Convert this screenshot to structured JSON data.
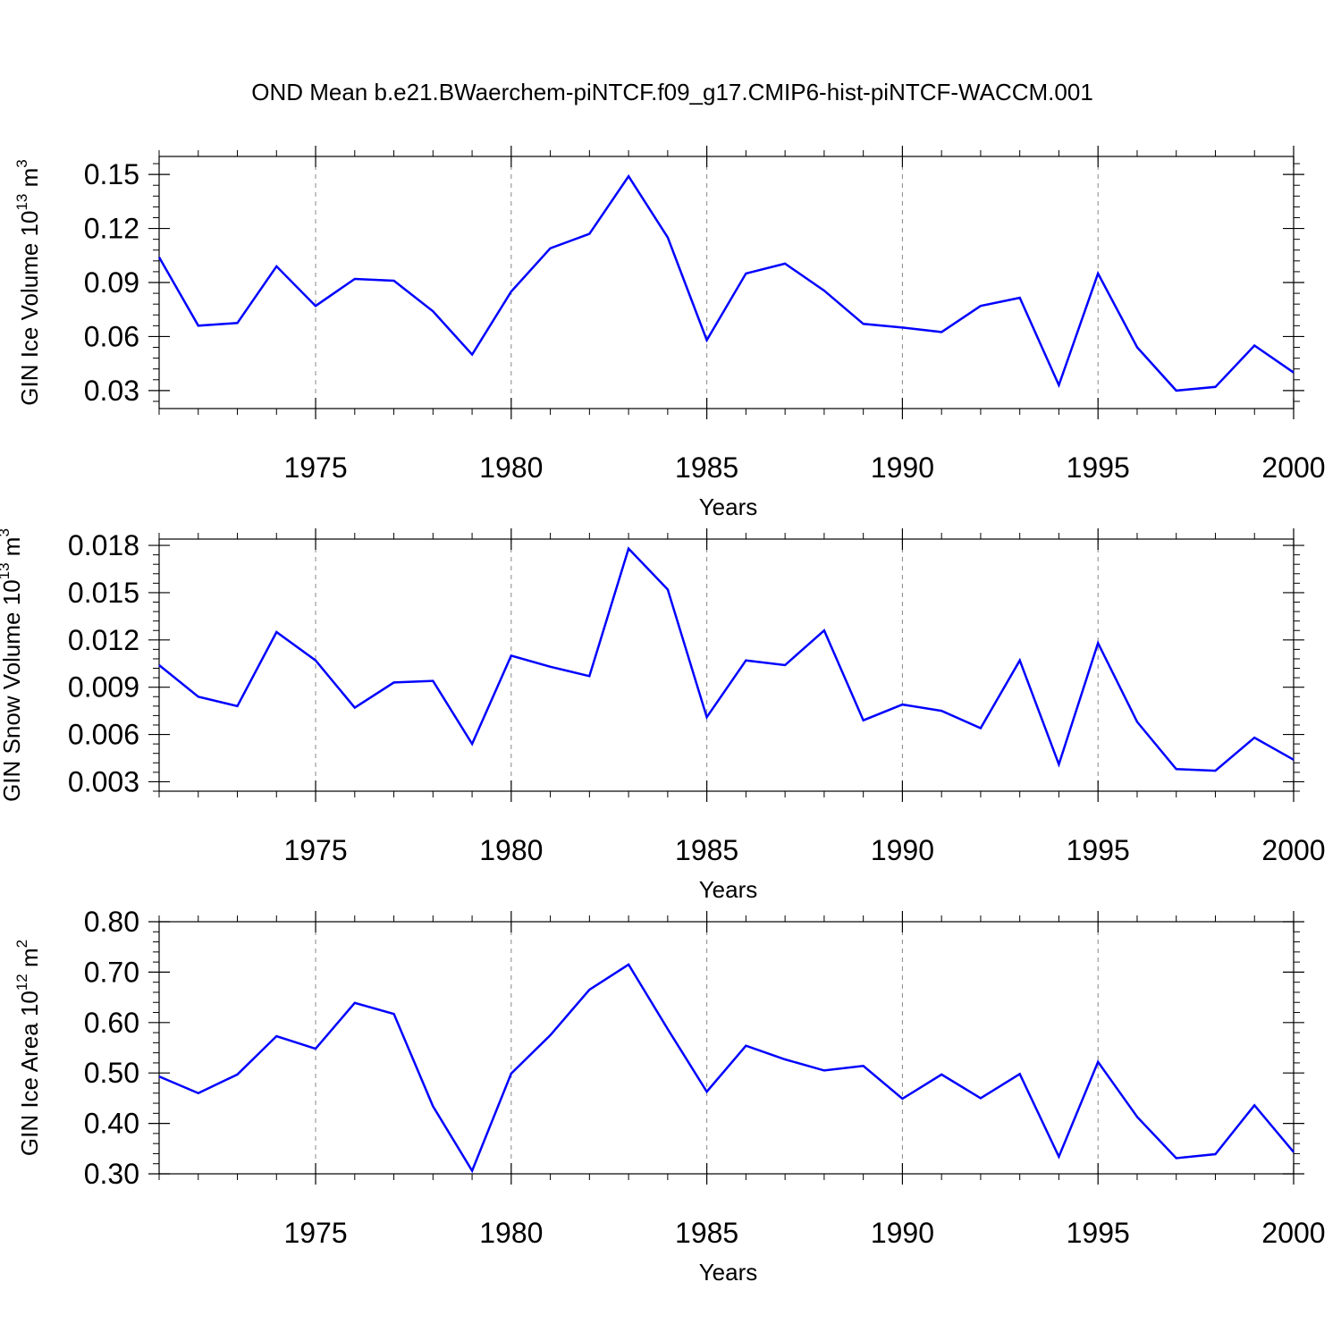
{
  "title": "OND Mean b.e21.BWaerchem-piNTCF.f09_g17.CMIP6-hist-piNTCF-WACCM.001",
  "line_color": "#0000ff",
  "chart_data": [
    {
      "type": "line",
      "xlabel": "Years",
      "ylabel_main": "GIN Ice Volume 10",
      "ylabel_exp": "13",
      "ylabel_unit": " m",
      "ylabel_unit_exp": "3",
      "xlim": [
        1971,
        2000
      ],
      "ylim": [
        0.02,
        0.16
      ],
      "x_ticks": [
        1975,
        1980,
        1985,
        1990,
        1995,
        2000
      ],
      "x_tick_labels": [
        "1975",
        "1980",
        "1985",
        "1990",
        "1995",
        "2000"
      ],
      "y_ticks": [
        0.03,
        0.06,
        0.09,
        0.12,
        0.15
      ],
      "y_tick_labels": [
        "0.03",
        "0.06",
        "0.09",
        "0.12",
        "0.15"
      ],
      "grid": "vertical-dashed",
      "x": [
        1971,
        1972,
        1973,
        1974,
        1975,
        1976,
        1977,
        1978,
        1979,
        1980,
        1981,
        1982,
        1983,
        1984,
        1985,
        1986,
        1987,
        1988,
        1989,
        1990,
        1991,
        1992,
        1993,
        1994,
        1995,
        1996,
        1997,
        1998,
        1999,
        2000
      ],
      "values": [
        0.104,
        0.066,
        0.0675,
        0.099,
        0.077,
        0.092,
        0.091,
        0.074,
        0.05,
        0.085,
        0.109,
        0.117,
        0.149,
        0.115,
        0.058,
        0.095,
        0.1005,
        0.0855,
        0.067,
        0.065,
        0.0625,
        0.077,
        0.0815,
        0.033,
        0.095,
        0.054,
        0.03,
        0.032,
        0.055,
        0.04
      ]
    },
    {
      "type": "line",
      "xlabel": "Years",
      "ylabel_main": "GIN Snow Volume 10",
      "ylabel_exp": "13",
      "ylabel_unit": " m",
      "ylabel_unit_exp": "3",
      "xlim": [
        1971,
        2000
      ],
      "ylim": [
        0.0024,
        0.0184
      ],
      "x_ticks": [
        1975,
        1980,
        1985,
        1990,
        1995,
        2000
      ],
      "x_tick_labels": [
        "1975",
        "1980",
        "1985",
        "1990",
        "1995",
        "2000"
      ],
      "y_ticks": [
        0.003,
        0.006,
        0.009,
        0.012,
        0.015,
        0.018
      ],
      "y_tick_labels": [
        "0.003",
        "0.006",
        "0.009",
        "0.012",
        "0.015",
        "0.018"
      ],
      "grid": "vertical-dashed",
      "x": [
        1971,
        1972,
        1973,
        1974,
        1975,
        1976,
        1977,
        1978,
        1979,
        1980,
        1981,
        1982,
        1983,
        1984,
        1985,
        1986,
        1987,
        1988,
        1989,
        1990,
        1991,
        1992,
        1993,
        1994,
        1995,
        1996,
        1997,
        1998,
        1999,
        2000
      ],
      "values": [
        0.0104,
        0.0084,
        0.0078,
        0.0125,
        0.0107,
        0.0077,
        0.0093,
        0.0094,
        0.0054,
        0.011,
        0.0103,
        0.0097,
        0.0178,
        0.0152,
        0.0071,
        0.0107,
        0.0104,
        0.0126,
        0.0069,
        0.0079,
        0.0075,
        0.0064,
        0.0107,
        0.0041,
        0.0118,
        0.0068,
        0.0038,
        0.0037,
        0.0058,
        0.0044
      ]
    },
    {
      "type": "line",
      "xlabel": "Years",
      "ylabel_main": "GIN Ice Area 10",
      "ylabel_exp": "12",
      "ylabel_unit": " m",
      "ylabel_unit_exp": "2",
      "xlim": [
        1971,
        2000
      ],
      "ylim": [
        0.3,
        0.8
      ],
      "x_ticks": [
        1975,
        1980,
        1985,
        1990,
        1995,
        2000
      ],
      "x_tick_labels": [
        "1975",
        "1980",
        "1985",
        "1990",
        "1995",
        "2000"
      ],
      "y_ticks": [
        0.3,
        0.4,
        0.5,
        0.6,
        0.7,
        0.8
      ],
      "y_tick_labels": [
        "0.30",
        "0.40",
        "0.50",
        "0.60",
        "0.70",
        "0.80"
      ],
      "grid": "vertical-dashed",
      "x": [
        1971,
        1972,
        1973,
        1974,
        1975,
        1976,
        1977,
        1978,
        1979,
        1980,
        1981,
        1982,
        1983,
        1984,
        1985,
        1986,
        1987,
        1988,
        1989,
        1990,
        1991,
        1992,
        1993,
        1994,
        1995,
        1996,
        1997,
        1998,
        1999,
        2000
      ],
      "values": [
        0.493,
        0.46,
        0.497,
        0.573,
        0.548,
        0.639,
        0.617,
        0.434,
        0.306,
        0.499,
        0.575,
        0.665,
        0.715,
        0.587,
        0.463,
        0.554,
        0.527,
        0.505,
        0.514,
        0.449,
        0.497,
        0.45,
        0.498,
        0.334,
        0.522,
        0.413,
        0.331,
        0.339,
        0.436,
        0.343
      ]
    }
  ]
}
